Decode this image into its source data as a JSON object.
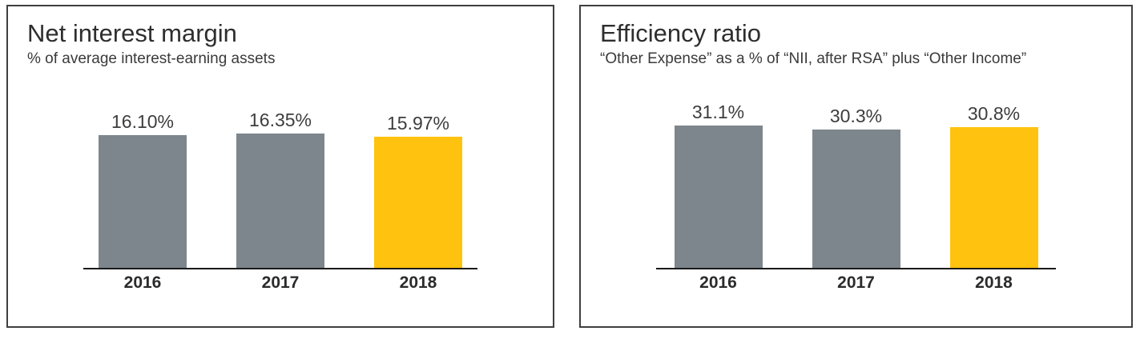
{
  "colors": {
    "bar_default": "#7D868C",
    "bar_highlight": "#FFC20E",
    "panel_border": "#3F3F3F",
    "axis_line": "#1A1A1A",
    "text": "#3A3A3A"
  },
  "chart_data": [
    {
      "type": "bar",
      "title": "Net interest margin",
      "subtitle": "% of average interest-earning assets",
      "categories": [
        "2016",
        "2017",
        "2018"
      ],
      "values": [
        16.1,
        16.35,
        15.97
      ],
      "value_labels": [
        "16.10%",
        "16.35%",
        "15.97%"
      ],
      "highlight_index": 2,
      "xlabel": "",
      "ylabel": "",
      "ylim": [
        0,
        20
      ],
      "grid": false,
      "legend": false
    },
    {
      "type": "bar",
      "title": "Efficiency ratio",
      "subtitle": "“Other Expense” as a % of “NII, after RSA” plus “Other Income”",
      "categories": [
        "2016",
        "2017",
        "2018"
      ],
      "values": [
        31.1,
        30.3,
        30.8
      ],
      "value_labels": [
        "31.1%",
        "30.3%",
        "30.8%"
      ],
      "highlight_index": 2,
      "xlabel": "",
      "ylabel": "",
      "ylim": [
        0,
        36
      ],
      "grid": false,
      "legend": false
    }
  ]
}
